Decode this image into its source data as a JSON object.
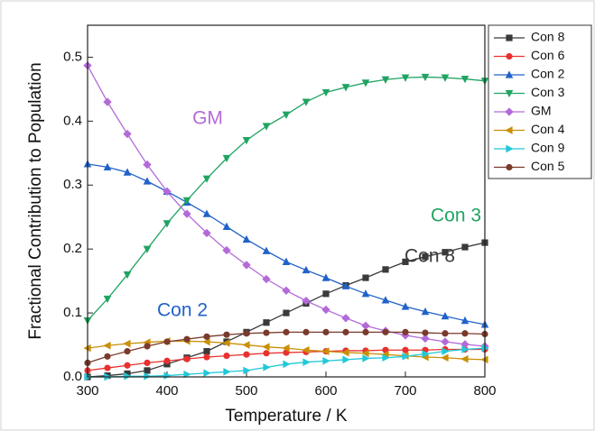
{
  "chart_data": {
    "type": "line",
    "x_label": "Temperature / K",
    "y_label": "Fractional Contribution to Population",
    "x": [
      300,
      325,
      350,
      375,
      400,
      425,
      450,
      475,
      500,
      525,
      550,
      575,
      600,
      625,
      650,
      675,
      700,
      725,
      750,
      775,
      800
    ],
    "xlim": [
      300,
      800
    ],
    "xticks": [
      300,
      400,
      500,
      600,
      700,
      800
    ],
    "ylim": [
      0,
      0.55
    ],
    "yticks": [
      {
        "value": 0,
        "label": "0.0"
      },
      0.1,
      0.2,
      0.3,
      0.4,
      0.5
    ],
    "series": [
      {
        "name": "Con 8",
        "color": "#3a3a3a",
        "marker": "square",
        "values": [
          0,
          0.002,
          0.005,
          0.01,
          0.02,
          0.03,
          0.04,
          0.055,
          0.07,
          0.085,
          0.1,
          0.115,
          0.13,
          0.143,
          0.155,
          0.168,
          0.18,
          0.188,
          0.195,
          0.203,
          0.21
        ]
      },
      {
        "name": "Con 6",
        "color": "#e8312f",
        "marker": "circle",
        "values": [
          0.01,
          0.014,
          0.018,
          0.022,
          0.025,
          0.028,
          0.031,
          0.033,
          0.035,
          0.037,
          0.038,
          0.039,
          0.04,
          0.041,
          0.041,
          0.042,
          0.042,
          0.042,
          0.043,
          0.043,
          0.043
        ]
      },
      {
        "name": "Con 2",
        "color": "#2162c9",
        "marker": "triangle-up",
        "values": [
          0.333,
          0.328,
          0.32,
          0.306,
          0.29,
          0.273,
          0.255,
          0.235,
          0.215,
          0.197,
          0.18,
          0.167,
          0.155,
          0.142,
          0.13,
          0.12,
          0.11,
          0.102,
          0.095,
          0.088,
          0.082
        ]
      },
      {
        "name": "Con 3",
        "color": "#1fa462",
        "marker": "triangle-down",
        "values": [
          0.088,
          0.122,
          0.16,
          0.2,
          0.24,
          0.276,
          0.31,
          0.342,
          0.37,
          0.392,
          0.41,
          0.43,
          0.445,
          0.453,
          0.46,
          0.465,
          0.468,
          0.469,
          0.468,
          0.466,
          0.463
        ]
      },
      {
        "name": "GM",
        "color": "#b36ad8",
        "marker": "diamond",
        "values": [
          0.487,
          0.43,
          0.38,
          0.332,
          0.29,
          0.255,
          0.225,
          0.198,
          0.175,
          0.153,
          0.135,
          0.119,
          0.105,
          0.092,
          0.08,
          0.072,
          0.065,
          0.06,
          0.055,
          0.051,
          0.048
        ]
      },
      {
        "name": "Con 4",
        "color": "#c98f06",
        "marker": "triangle-left",
        "values": [
          0.045,
          0.049,
          0.052,
          0.054,
          0.056,
          0.056,
          0.055,
          0.053,
          0.05,
          0.047,
          0.045,
          0.042,
          0.04,
          0.038,
          0.037,
          0.035,
          0.033,
          0.031,
          0.03,
          0.028,
          0.027
        ]
      },
      {
        "name": "Con 9",
        "color": "#21c8d8",
        "marker": "triangle-right",
        "values": [
          0,
          0,
          0.001,
          0.001,
          0.002,
          0.004,
          0.006,
          0.008,
          0.01,
          0.015,
          0.02,
          0.023,
          0.025,
          0.027,
          0.029,
          0.03,
          0.032,
          0.036,
          0.04,
          0.043,
          0.045
        ]
      },
      {
        "name": "Con 5",
        "color": "#7a3a2c",
        "marker": "circle",
        "values": [
          0.022,
          0.032,
          0.04,
          0.048,
          0.055,
          0.059,
          0.063,
          0.066,
          0.068,
          0.069,
          0.07,
          0.07,
          0.07,
          0.07,
          0.07,
          0.07,
          0.07,
          0.069,
          0.068,
          0.068,
          0.067
        ]
      }
    ],
    "annotations": [
      {
        "text": "GM",
        "color": "#b36ad8"
      },
      {
        "text": "Con 3",
        "color": "#1fa462"
      },
      {
        "text": "Con 2",
        "color": "#2162c9"
      },
      {
        "text": "Con 8",
        "color": "#3a3a3a"
      }
    ]
  }
}
